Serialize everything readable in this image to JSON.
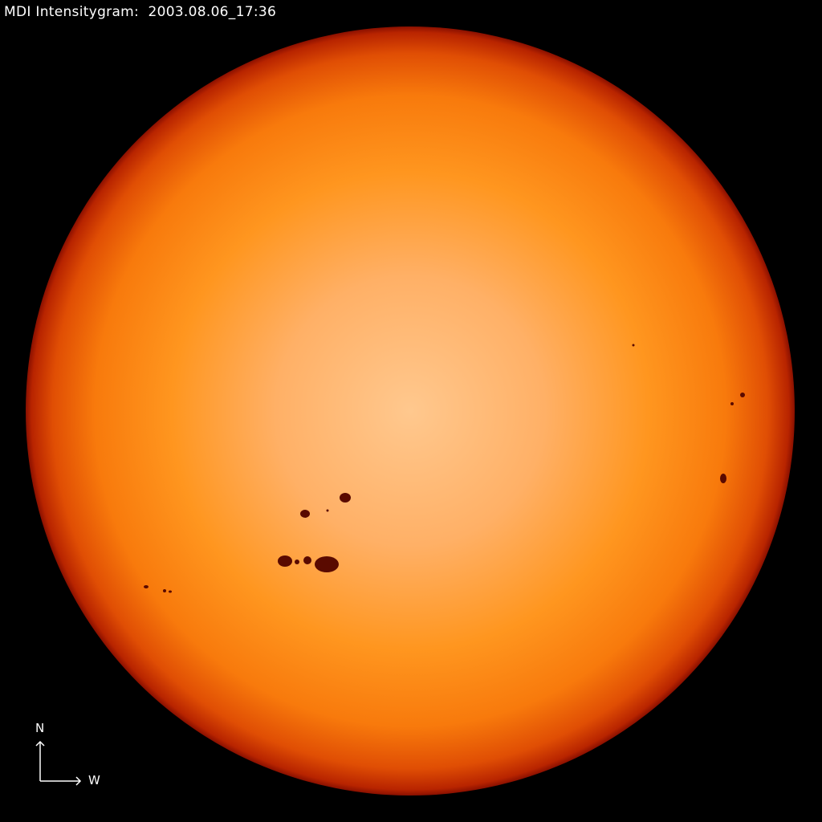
{
  "title": "MDI Intensitygram:  2003.08.06_17:36",
  "compass": {
    "north": "N",
    "west": "W"
  },
  "colors": {
    "background": "#000000",
    "disk_center": "#ffd29a",
    "disk_mid": "#ff8c1a",
    "limb": "#a81400",
    "sunspot": "#5a0a00"
  }
}
